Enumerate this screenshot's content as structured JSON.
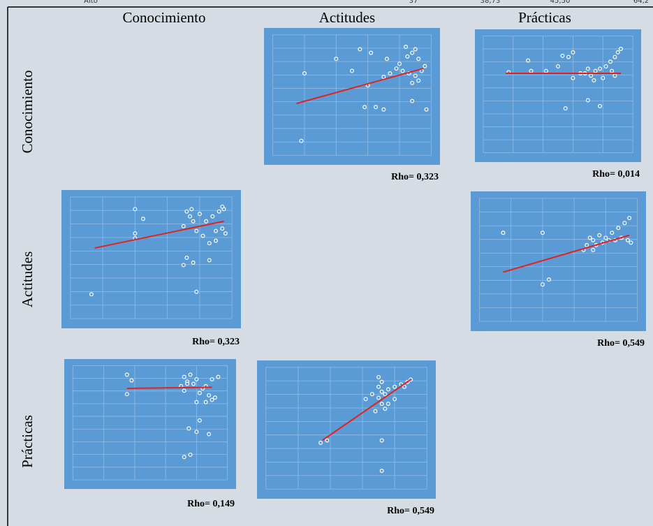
{
  "header_strip": [
    "Alto",
    "37",
    "38,73",
    "45,50",
    "64,2"
  ],
  "columns": [
    "Conocimiento",
    "Actitudes",
    "Prácticas"
  ],
  "rows": [
    "Conocimiento",
    "Actitudes",
    "Prácticas"
  ],
  "panels": [
    {
      "rho": "Rho= 0,323",
      "fit": [
        [
          15,
          43
        ],
        [
          95,
          72
        ]
      ],
      "points": [
        [
          90,
          88
        ],
        [
          88,
          85
        ],
        [
          92,
          80
        ],
        [
          85,
          82
        ],
        [
          80,
          76
        ],
        [
          78,
          72
        ],
        [
          82,
          70
        ],
        [
          86,
          68
        ],
        [
          90,
          66
        ],
        [
          94,
          70
        ],
        [
          96,
          74
        ],
        [
          74,
          68
        ],
        [
          70,
          65
        ],
        [
          88,
          60
        ],
        [
          92,
          62
        ],
        [
          62,
          85
        ],
        [
          55,
          88
        ],
        [
          40,
          80
        ],
        [
          20,
          68
        ],
        [
          60,
          58
        ],
        [
          65,
          40
        ],
        [
          70,
          38
        ],
        [
          58,
          40
        ],
        [
          88,
          45
        ],
        [
          97,
          38
        ],
        [
          18,
          12
        ],
        [
          50,
          70
        ],
        [
          72,
          80
        ],
        [
          84,
          90
        ]
      ]
    },
    {
      "rho": "Rho= 0,014",
      "fit": [
        [
          15,
          68
        ],
        [
          92,
          68
        ]
      ],
      "points": [
        [
          17,
          69
        ],
        [
          30,
          79
        ],
        [
          32,
          70
        ],
        [
          42,
          70
        ],
        [
          50,
          74
        ],
        [
          53,
          83
        ],
        [
          57,
          82
        ],
        [
          60,
          86
        ],
        [
          68,
          68
        ],
        [
          72,
          66
        ],
        [
          75,
          70
        ],
        [
          78,
          72
        ],
        [
          82,
          74
        ],
        [
          85,
          78
        ],
        [
          88,
          82
        ],
        [
          90,
          86
        ],
        [
          92,
          89
        ],
        [
          70,
          72
        ],
        [
          80,
          64
        ],
        [
          88,
          66
        ],
        [
          74,
          62
        ],
        [
          60,
          64
        ],
        [
          55,
          38
        ],
        [
          70,
          45
        ],
        [
          78,
          40
        ],
        [
          65,
          68
        ],
        [
          86,
          70
        ]
      ]
    },
    {
      "rho": "Rho= 0,323",
      "fit": [
        [
          15,
          58
        ],
        [
          95,
          80
        ]
      ],
      "points": [
        [
          13,
          20
        ],
        [
          40,
          90
        ],
        [
          45,
          82
        ],
        [
          40,
          70
        ],
        [
          40,
          66
        ],
        [
          72,
          88
        ],
        [
          74,
          84
        ],
        [
          76,
          80
        ],
        [
          70,
          76
        ],
        [
          78,
          72
        ],
        [
          80,
          86
        ],
        [
          84,
          80
        ],
        [
          88,
          84
        ],
        [
          92,
          88
        ],
        [
          95,
          90
        ],
        [
          90,
          72
        ],
        [
          94,
          74
        ],
        [
          96,
          70
        ],
        [
          82,
          68
        ],
        [
          86,
          62
        ],
        [
          90,
          64
        ],
        [
          72,
          50
        ],
        [
          76,
          46
        ],
        [
          70,
          44
        ],
        [
          86,
          48
        ],
        [
          78,
          22
        ],
        [
          94,
          92
        ],
        [
          75,
          90
        ]
      ]
    },
    {
      "rho": "Rho= 0,549",
      "fit": [
        [
          15,
          40
        ],
        [
          95,
          70
        ]
      ],
      "points": [
        [
          15,
          72
        ],
        [
          40,
          72
        ],
        [
          40,
          30
        ],
        [
          44,
          34
        ],
        [
          68,
          62
        ],
        [
          72,
          66
        ],
        [
          76,
          70
        ],
        [
          80,
          68
        ],
        [
          84,
          72
        ],
        [
          88,
          76
        ],
        [
          92,
          80
        ],
        [
          95,
          84
        ],
        [
          70,
          68
        ],
        [
          74,
          62
        ],
        [
          78,
          64
        ],
        [
          82,
          66
        ],
        [
          86,
          66
        ],
        [
          90,
          68
        ],
        [
          94,
          66
        ],
        [
          96,
          64
        ],
        [
          72,
          58
        ],
        [
          66,
          58
        ]
      ]
    },
    {
      "rho": "Rho= 0,149",
      "fit": [
        [
          35,
          80
        ],
        [
          90,
          81
        ]
      ],
      "points": [
        [
          35,
          92
        ],
        [
          38,
          87
        ],
        [
          35,
          75
        ],
        [
          72,
          90
        ],
        [
          74,
          86
        ],
        [
          76,
          92
        ],
        [
          70,
          82
        ],
        [
          72,
          78
        ],
        [
          78,
          84
        ],
        [
          80,
          88
        ],
        [
          82,
          76
        ],
        [
          86,
          82
        ],
        [
          90,
          88
        ],
        [
          94,
          90
        ],
        [
          84,
          80
        ],
        [
          88,
          74
        ],
        [
          92,
          72
        ],
        [
          80,
          68
        ],
        [
          86,
          68
        ],
        [
          90,
          70
        ],
        [
          82,
          52
        ],
        [
          75,
          45
        ],
        [
          80,
          42
        ],
        [
          88,
          40
        ],
        [
          72,
          20
        ],
        [
          76,
          22
        ],
        [
          74,
          84
        ]
      ]
    },
    {
      "rho": "Rho= 0,549",
      "fit": [
        [
          35,
          40
        ],
        [
          90,
          90
        ]
      ],
      "points": [
        [
          34,
          38
        ],
        [
          38,
          40
        ],
        [
          70,
          92
        ],
        [
          72,
          88
        ],
        [
          72,
          80
        ],
        [
          70,
          75
        ],
        [
          74,
          78
        ],
        [
          62,
          74
        ],
        [
          66,
          78
        ],
        [
          72,
          70
        ],
        [
          76,
          82
        ],
        [
          80,
          84
        ],
        [
          84,
          86
        ],
        [
          88,
          88
        ],
        [
          90,
          90
        ],
        [
          68,
          64
        ],
        [
          74,
          66
        ],
        [
          80,
          74
        ],
        [
          76,
          70
        ],
        [
          72,
          40
        ],
        [
          72,
          15
        ],
        [
          70,
          84
        ],
        [
          86,
          84
        ]
      ]
    }
  ]
}
